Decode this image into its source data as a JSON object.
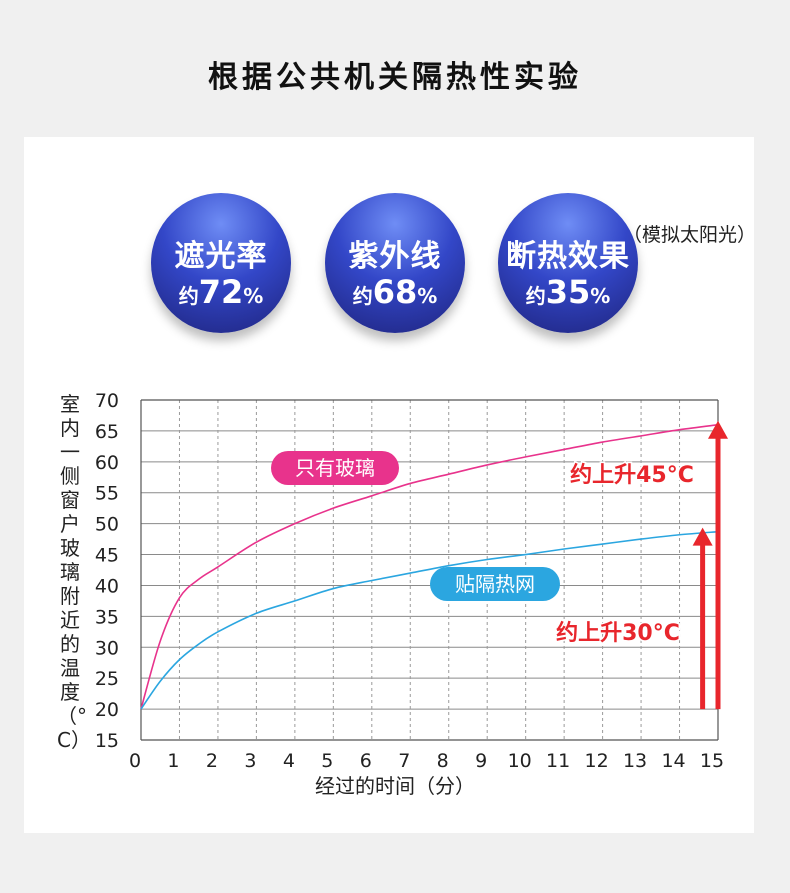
{
  "page": {
    "title": "根据公共机关隔热性实验"
  },
  "stats": [
    {
      "label": "遮光率",
      "prefix": "约",
      "value": "72",
      "unit": "%"
    },
    {
      "label": "紫外线",
      "prefix": "约",
      "value": "68",
      "unit": "%"
    },
    {
      "label": "断热效果",
      "prefix": "约",
      "value": "35",
      "unit": "%"
    }
  ],
  "note": "（模拟太阳光）",
  "chart_data": {
    "type": "line",
    "xlabel": "经过的时间（分）",
    "ylabel": "室内一侧窗户玻璃附近的温度（°C）",
    "xlim": [
      0,
      15
    ],
    "ylim": [
      15,
      70
    ],
    "x_ticks": [
      0,
      1,
      2,
      3,
      4,
      5,
      6,
      7,
      8,
      9,
      10,
      11,
      12,
      13,
      14,
      15
    ],
    "y_ticks": [
      15,
      20,
      25,
      30,
      35,
      40,
      45,
      50,
      55,
      60,
      65,
      70
    ],
    "grid": true,
    "series": [
      {
        "name": "只有玻璃",
        "color": "#e8338c",
        "x": [
          0,
          0.5,
          1,
          1.5,
          2,
          3,
          4,
          5,
          6,
          7,
          8,
          9,
          10,
          11,
          12,
          13,
          14,
          15
        ],
        "y": [
          20,
          31,
          38,
          41,
          43,
          47,
          50,
          52.5,
          54.5,
          56.5,
          58,
          59.5,
          60.8,
          62,
          63.2,
          64.2,
          65.2,
          66
        ]
      },
      {
        "name": "贴隔热网",
        "color": "#2ba6e0",
        "x": [
          0,
          0.5,
          1,
          1.5,
          2,
          3,
          4,
          5,
          6,
          7,
          8,
          9,
          10,
          11,
          12,
          13,
          14,
          15
        ],
        "y": [
          20,
          24.5,
          28,
          30.5,
          32.5,
          35.5,
          37.5,
          39.5,
          40.8,
          42,
          43.2,
          44.2,
          45,
          45.9,
          46.7,
          47.5,
          48.2,
          48.7
        ]
      }
    ],
    "annotations": [
      {
        "text": "约上升45°C",
        "color": "#e8262c"
      },
      {
        "text": "约上升30°C",
        "color": "#e8262c"
      }
    ]
  }
}
